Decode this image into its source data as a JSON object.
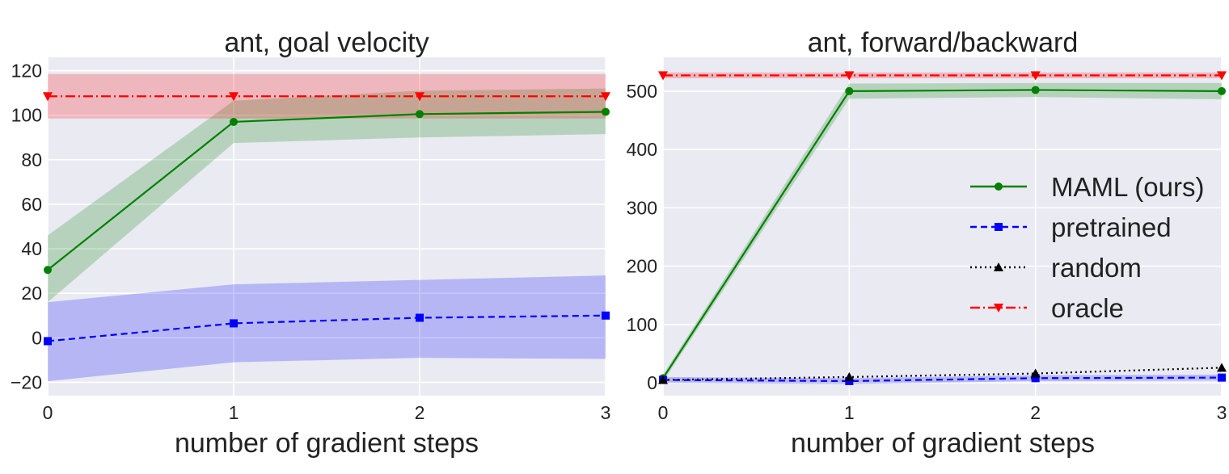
{
  "chart_data": [
    {
      "type": "line",
      "title": "ant, goal velocity",
      "xlabel": "number of gradient steps",
      "ylabel": "",
      "x": [
        0,
        1,
        2,
        3
      ],
      "xticks": [
        "0",
        "1",
        "2",
        "3"
      ],
      "xlim": [
        0,
        3
      ],
      "yticks": [
        "−20",
        "0",
        "20",
        "40",
        "60",
        "80",
        "100",
        "120"
      ],
      "ylim": [
        -26,
        126
      ],
      "grid": true,
      "series": [
        {
          "name": "MAML (ours)",
          "color": "#008000",
          "linestyle": "solid",
          "marker": "circle",
          "values": [
            30.5,
            97,
            100.5,
            101.5
          ],
          "lower": [
            16,
            87.5,
            90,
            91.5
          ],
          "upper": [
            46,
            106.5,
            111,
            112
          ]
        },
        {
          "name": "pretrained",
          "color": "#0000ff",
          "linestyle": "dashed",
          "marker": "square",
          "values": [
            -1.5,
            6.5,
            9,
            10
          ],
          "lower": [
            -19.5,
            -11,
            -9,
            -9.5
          ],
          "upper": [
            16,
            24,
            26,
            28
          ]
        },
        {
          "name": "oracle",
          "color": "#ff0000",
          "linestyle": "dashdot",
          "marker": "triangle-down",
          "values": [
            108.5,
            108.5,
            108.5,
            108.5
          ],
          "lower": [
            98.5,
            98.5,
            98.5,
            98.5
          ],
          "upper": [
            118.5,
            118.5,
            118.5,
            118.5
          ]
        }
      ]
    },
    {
      "type": "line",
      "title": "ant, forward/backward",
      "xlabel": "number of gradient steps",
      "ylabel": "",
      "x": [
        0,
        1,
        2,
        3
      ],
      "xticks": [
        "0",
        "1",
        "2",
        "3"
      ],
      "xlim": [
        0,
        3
      ],
      "yticks": [
        "0",
        "100",
        "200",
        "300",
        "400",
        "500"
      ],
      "ylim": [
        -22,
        558
      ],
      "grid": true,
      "legend_position": "right",
      "series": [
        {
          "name": "MAML (ours)",
          "color": "#008000",
          "linestyle": "solid",
          "marker": "circle",
          "values": [
            8,
            500,
            502,
            500
          ],
          "lower": [
            2,
            487,
            490,
            486
          ],
          "upper": [
            14,
            513,
            514,
            514
          ]
        },
        {
          "name": "pretrained",
          "color": "#0000ff",
          "linestyle": "dashed",
          "marker": "square",
          "values": [
            5,
            3,
            8,
            9
          ],
          "lower": [
            0,
            -2,
            3,
            4
          ],
          "upper": [
            10,
            8,
            13,
            14
          ]
        },
        {
          "name": "random",
          "color": "#000000",
          "linestyle": "dotted",
          "marker": "triangle-up",
          "values": [
            5,
            10,
            16,
            26
          ],
          "lower": null,
          "upper": null
        },
        {
          "name": "oracle",
          "color": "#ff0000",
          "linestyle": "dashdot",
          "marker": "triangle-down",
          "values": [
            527,
            527,
            527,
            527
          ],
          "lower": [
            522,
            522,
            522,
            522
          ],
          "upper": [
            532,
            532,
            532,
            532
          ]
        }
      ]
    }
  ],
  "legend": {
    "entries": [
      "MAML (ours)",
      "pretrained",
      "random",
      "oracle"
    ]
  }
}
